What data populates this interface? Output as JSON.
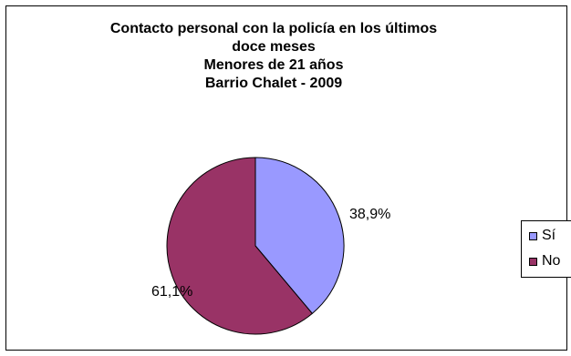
{
  "chart_data": {
    "type": "pie",
    "title_lines": [
      "Contacto personal con la policía en los últimos",
      "doce meses",
      "Menores de 21 años",
      "Barrio Chalet - 2009"
    ],
    "categories": [
      "Sí",
      "No"
    ],
    "values": [
      38.9,
      61.1
    ],
    "data_labels": [
      "38,9%",
      "61,1%"
    ],
    "colors": [
      "#9999ff",
      "#993366"
    ],
    "legend_position": "right"
  }
}
